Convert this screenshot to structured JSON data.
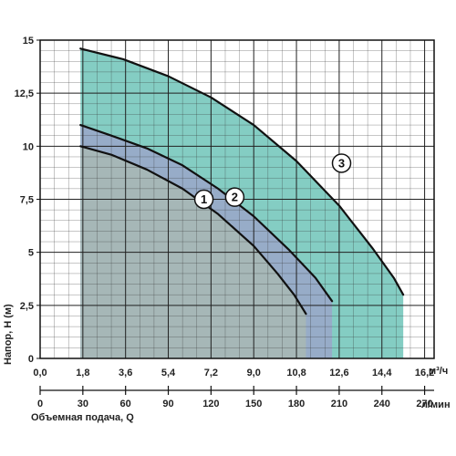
{
  "chart_data": {
    "type": "line",
    "ylabel": "Напор, H (м)",
    "xlabel_primary_unit": "м³/ч",
    "xlabel_secondary": "Объемная подача, Q",
    "xlabel_secondary_unit": "л/мин",
    "xlim": [
      0,
      16.6
    ],
    "ylim": [
      0,
      15
    ],
    "x_ticks": [
      "0,0",
      "1,8",
      "3,6",
      "5,4",
      "7,2",
      "9,0",
      "10,8",
      "12,6",
      "14,4",
      "16,2"
    ],
    "x_tick_values": [
      0,
      1.8,
      3.6,
      5.4,
      7.2,
      9.0,
      10.8,
      12.6,
      14.4,
      16.2
    ],
    "x2_ticks": [
      "0",
      "30",
      "60",
      "90",
      "120",
      "150",
      "180",
      "210",
      "240",
      "270"
    ],
    "y_ticks": [
      "0",
      "2,5",
      "5",
      "7,5",
      "10",
      "12,5",
      "15"
    ],
    "y_tick_values": [
      0,
      2.5,
      5,
      7.5,
      10,
      12.5,
      15
    ],
    "grid": true,
    "series": [
      {
        "name": "1",
        "color": "#111111",
        "x": [
          1.7,
          3.0,
          4.5,
          6.0,
          7.5,
          9.0,
          10.0,
          10.7,
          11.2
        ],
        "y": [
          10.0,
          9.6,
          8.9,
          8.0,
          6.8,
          5.3,
          4.0,
          3.0,
          2.1
        ],
        "fill": "#a8b8b4",
        "label_at": [
          6.9,
          7.5
        ]
      },
      {
        "name": "2",
        "color": "#111111",
        "x": [
          1.7,
          3.0,
          4.5,
          6.0,
          7.5,
          9.0,
          10.5,
          11.6,
          12.3
        ],
        "y": [
          11.0,
          10.5,
          9.9,
          9.1,
          8.0,
          6.7,
          5.1,
          3.8,
          2.7
        ],
        "fill": "#9aa6c9",
        "label_at": [
          8.2,
          7.6
        ]
      },
      {
        "name": "3",
        "color": "#111111",
        "x": [
          1.7,
          3.5,
          5.4,
          7.2,
          9.0,
          10.8,
          12.6,
          14.0,
          14.9,
          15.3
        ],
        "y": [
          14.6,
          14.1,
          13.3,
          12.3,
          11.0,
          9.3,
          7.2,
          5.2,
          3.8,
          3.0
        ],
        "fill": "#6fc4b9",
        "label_at": [
          12.7,
          9.2
        ]
      }
    ]
  }
}
